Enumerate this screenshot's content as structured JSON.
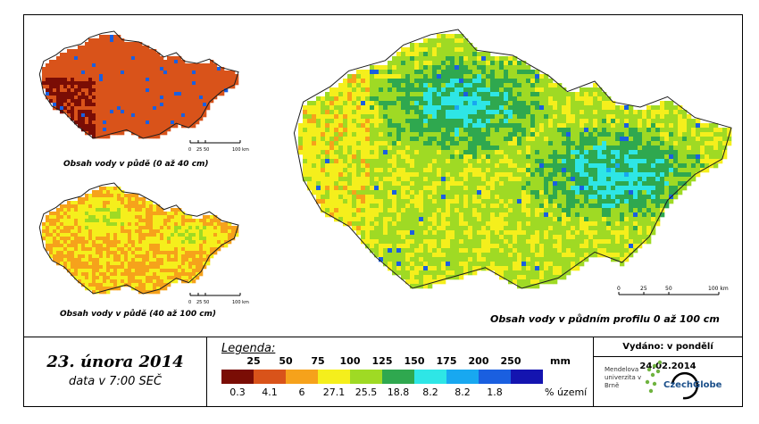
{
  "captions": {
    "map_top": "Obsah vody v půdě (0 až 40 cm)",
    "map_bottom": "Obsah vody v půdě (40 až 100 cm)",
    "map_main": "Obsah vody v půdním profilu 0 až 100 cm"
  },
  "scalebar_small": {
    "ticks": [
      "0",
      "25",
      "50",
      "100 km"
    ]
  },
  "scalebar_main": {
    "ticks": [
      "0",
      "25",
      "50",
      "100 km"
    ]
  },
  "date_box": {
    "date": "23. února 2014",
    "subtitle": "data v 7:00 SEČ"
  },
  "legend": {
    "title": "Legenda:",
    "unit": "mm",
    "percent_unit": "% území",
    "thresholds": [
      "25",
      "50",
      "75",
      "100",
      "125",
      "150",
      "175",
      "200",
      "250"
    ],
    "classes": [
      {
        "color": "#7a0d05",
        "percent": "0.3"
      },
      {
        "color": "#d9531a",
        "percent": "4.1"
      },
      {
        "color": "#f6a21b",
        "percent": "6"
      },
      {
        "color": "#f5ef1c",
        "percent": "27.1"
      },
      {
        "color": "#9fda24",
        "percent": "25.5"
      },
      {
        "color": "#2fa84f",
        "percent": "18.8"
      },
      {
        "color": "#2ee6e6",
        "percent": "8.2"
      },
      {
        "color": "#18a8f0",
        "percent": "8.2"
      },
      {
        "color": "#1a5fe0",
        "percent": "1.8"
      },
      {
        "color": "#1414b0",
        "percent": ""
      }
    ]
  },
  "info": {
    "issued": "Vydáno: v pondělí 24.02.2014",
    "institution": "Mendelova univerzita v Brně",
    "partner_logo": "CzechGlobe"
  }
}
